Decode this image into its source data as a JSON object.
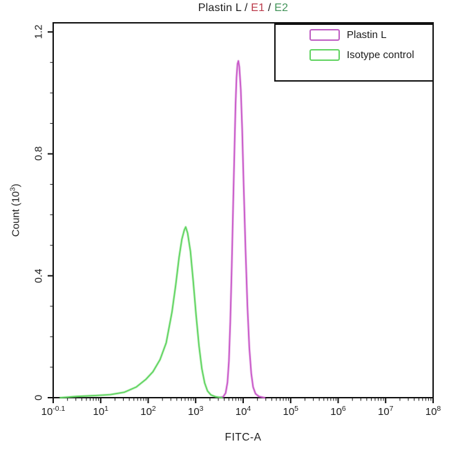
{
  "title": {
    "parts": [
      {
        "text": "Plastin L / ",
        "color": "#1c1c1c"
      },
      {
        "text": "E1",
        "color": "#bb3a4a"
      },
      {
        "text": " / ",
        "color": "#1c1c1c"
      },
      {
        "text": "E2",
        "color": "#43945a"
      }
    ]
  },
  "legend": {
    "items": [
      {
        "label": "Plastin L",
        "color": "#c05fc4"
      },
      {
        "label": "Isotype control",
        "color": "#63d463"
      }
    ]
  },
  "axes": {
    "x_title": "FITC-A",
    "y_title_pre": "Count (10",
    "y_title_sup": "3",
    "y_title_post": ")"
  },
  "chart_data": {
    "type": "line",
    "subtype": "flow-cytometry-histogram",
    "title": "Plastin L / E1 / E2",
    "xlabel": "FITC-A",
    "ylabel": "Count (10^3)",
    "x_scale": "log",
    "x_tick_base": "10",
    "x_tick_exponents": [
      "-0.1",
      "1",
      "2",
      "3",
      "4",
      "5",
      "6",
      "7",
      "8"
    ],
    "y_ticks": [
      {
        "label": "0",
        "value": 0
      },
      {
        "label": "0.4",
        "value": 0.4
      },
      {
        "label": "0.8",
        "value": 0.8
      },
      {
        "label": "1.2",
        "value": 1.2
      }
    ],
    "y_minor_step": 0.1,
    "ylim": [
      0,
      1.23
    ],
    "grid": false,
    "legend_position": "top-right",
    "axis_color": "#111111",
    "series": [
      {
        "name": "Plastin L",
        "color": "#c857c8",
        "points_log10x_count": [
          [
            3.5,
            0.0
          ],
          [
            3.58,
            0.003
          ],
          [
            3.63,
            0.015
          ],
          [
            3.67,
            0.05
          ],
          [
            3.7,
            0.12
          ],
          [
            3.73,
            0.25
          ],
          [
            3.76,
            0.43
          ],
          [
            3.79,
            0.64
          ],
          [
            3.82,
            0.83
          ],
          [
            3.84,
            0.96
          ],
          [
            3.86,
            1.05
          ],
          [
            3.88,
            1.095
          ],
          [
            3.9,
            1.105
          ],
          [
            3.92,
            1.085
          ],
          [
            3.95,
            1.01
          ],
          [
            3.98,
            0.88
          ],
          [
            4.01,
            0.7
          ],
          [
            4.05,
            0.49
          ],
          [
            4.09,
            0.3
          ],
          [
            4.13,
            0.165
          ],
          [
            4.17,
            0.08
          ],
          [
            4.21,
            0.035
          ],
          [
            4.26,
            0.013
          ],
          [
            4.33,
            0.004
          ],
          [
            4.45,
            0.0
          ]
        ]
      },
      {
        "name": "Isotype control",
        "color": "#5fd45f",
        "points_log10x_count": [
          [
            0.15,
            0.0
          ],
          [
            0.5,
            0.004
          ],
          [
            0.9,
            0.007
          ],
          [
            1.2,
            0.01
          ],
          [
            1.5,
            0.018
          ],
          [
            1.75,
            0.035
          ],
          [
            1.95,
            0.06
          ],
          [
            2.1,
            0.085
          ],
          [
            2.25,
            0.125
          ],
          [
            2.38,
            0.18
          ],
          [
            2.5,
            0.28
          ],
          [
            2.58,
            0.37
          ],
          [
            2.65,
            0.46
          ],
          [
            2.71,
            0.52
          ],
          [
            2.76,
            0.55
          ],
          [
            2.79,
            0.56
          ],
          [
            2.83,
            0.54
          ],
          [
            2.89,
            0.48
          ],
          [
            2.95,
            0.38
          ],
          [
            3.01,
            0.27
          ],
          [
            3.07,
            0.17
          ],
          [
            3.13,
            0.095
          ],
          [
            3.19,
            0.048
          ],
          [
            3.25,
            0.022
          ],
          [
            3.32,
            0.009
          ],
          [
            3.42,
            0.003
          ],
          [
            3.55,
            0.0
          ]
        ]
      }
    ]
  }
}
